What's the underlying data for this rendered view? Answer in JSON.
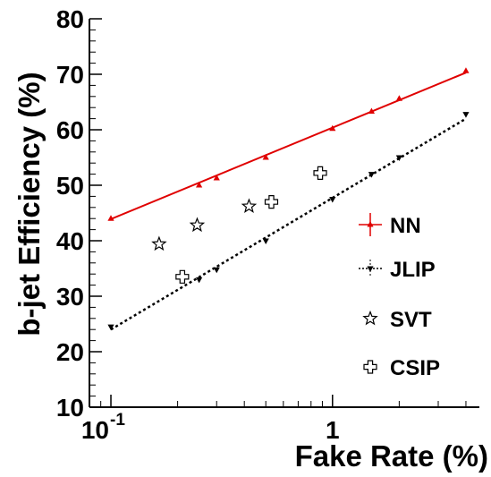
{
  "chart_data": {
    "type": "scatter",
    "xlabel": "Fake Rate (%)",
    "ylabel": "b-jet Efficiency (%)",
    "xscale": "log",
    "xlim": [
      0.08,
      4.6
    ],
    "ylim": [
      10,
      80
    ],
    "x_ticks": [
      {
        "value": 0.1,
        "base": "10",
        "exp": "-1"
      },
      {
        "value": 1,
        "base": "1",
        "exp": ""
      }
    ],
    "y_ticks": [
      10,
      20,
      30,
      40,
      50,
      60,
      70,
      80
    ],
    "legend_position": "right",
    "series": [
      {
        "name": "NN",
        "color": "#e00000",
        "marker": "triangle-up",
        "line": "solid",
        "x": [
          0.1,
          0.25,
          0.3,
          0.5,
          1.0,
          1.5,
          2.0,
          4.0
        ],
        "y": [
          44.0,
          50.0,
          51.3,
          55.0,
          60.2,
          63.3,
          65.6,
          70.6
        ]
      },
      {
        "name": "JLIP",
        "color": "#000000",
        "marker": "triangle-down",
        "line": "dotted",
        "x": [
          0.1,
          0.25,
          0.3,
          0.5,
          1.0,
          1.5,
          2.0,
          4.0
        ],
        "y": [
          24.5,
          33.0,
          34.8,
          40.0,
          47.5,
          52.0,
          55.0,
          62.8
        ]
      },
      {
        "name": "SVT",
        "color": "#000000",
        "marker": "open-star",
        "line": "none",
        "x": [
          0.165,
          0.245,
          0.42
        ],
        "y": [
          39.4,
          42.8,
          46.2
        ]
      },
      {
        "name": "CSIP",
        "color": "#000000",
        "marker": "open-cross",
        "line": "none",
        "x": [
          0.21,
          0.53,
          0.88
        ],
        "y": [
          33.5,
          47.0,
          52.2
        ]
      }
    ],
    "fit_lines": [
      {
        "series": "NN",
        "x": [
          0.1,
          4.0
        ],
        "y": [
          43.9,
          70.3
        ]
      },
      {
        "series": "JLIP",
        "x": [
          0.1,
          4.0
        ],
        "y": [
          24.0,
          62.0
        ]
      }
    ]
  }
}
